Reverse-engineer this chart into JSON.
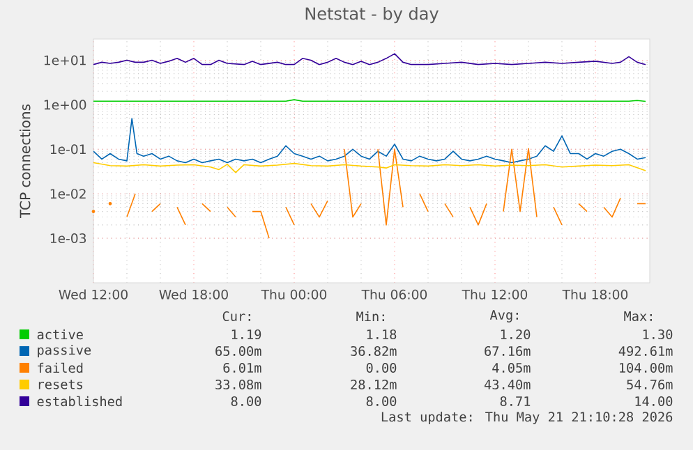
{
  "chart_data": {
    "type": "line",
    "title": "Netstat - by day",
    "ylabel": "TCP connections",
    "log": "y",
    "grid": true,
    "legend": "bottom",
    "marker": "none",
    "line_style": "solid",
    "xlim": [
      "2026-05-20T12:00",
      "2026-05-21T21:15"
    ],
    "ylim": [
      0.0001,
      30
    ],
    "xticks": [
      {
        "value": "2026-05-20T12:00",
        "label": "Wed 12:00"
      },
      {
        "value": "2026-05-20T18:00",
        "label": "Wed 18:00"
      },
      {
        "value": "2026-05-21T00:00",
        "label": "Thu 00:00"
      },
      {
        "value": "2026-05-21T06:00",
        "label": "Thu 06:00"
      },
      {
        "value": "2026-05-21T12:00",
        "label": "Thu 12:00"
      },
      {
        "value": "2026-05-21T18:00",
        "label": "Thu 18:00"
      }
    ],
    "yticks": [
      {
        "value": 0.001,
        "label": "1e-03"
      },
      {
        "value": 0.01,
        "label": "1e-02"
      },
      {
        "value": 0.1,
        "label": "1e-01"
      },
      {
        "value": 1,
        "label": "1e+00"
      },
      {
        "value": 10,
        "label": "1e+01"
      }
    ],
    "series": [
      {
        "name": "active",
        "color": "#00cc00",
        "x": [
          "2026-05-20T12:00",
          "2026-05-20T14:00",
          "2026-05-20T16:00",
          "2026-05-20T18:00",
          "2026-05-20T20:00",
          "2026-05-20T22:00",
          "2026-05-20T23:30",
          "2026-05-21T00:00",
          "2026-05-21T00:30",
          "2026-05-21T02:00",
          "2026-05-21T04:00",
          "2026-05-21T06:00",
          "2026-05-21T08:00",
          "2026-05-21T10:00",
          "2026-05-21T12:00",
          "2026-05-21T14:00",
          "2026-05-21T16:00",
          "2026-05-21T18:00",
          "2026-05-21T20:00",
          "2026-05-21T20:30",
          "2026-05-21T21:00"
        ],
        "values": [
          1.2,
          1.2,
          1.2,
          1.2,
          1.2,
          1.2,
          1.2,
          1.3,
          1.2,
          1.2,
          1.2,
          1.2,
          1.2,
          1.2,
          1.2,
          1.2,
          1.2,
          1.2,
          1.2,
          1.25,
          1.19
        ]
      },
      {
        "name": "passive",
        "color": "#0066b3",
        "x": [
          "2026-05-20T12:00",
          "2026-05-20T12:30",
          "2026-05-20T13:00",
          "2026-05-20T13:30",
          "2026-05-20T14:00",
          "2026-05-20T14:18",
          "2026-05-20T14:36",
          "2026-05-20T15:00",
          "2026-05-20T15:30",
          "2026-05-20T16:00",
          "2026-05-20T16:30",
          "2026-05-20T17:00",
          "2026-05-20T17:30",
          "2026-05-20T18:00",
          "2026-05-20T18:30",
          "2026-05-20T19:00",
          "2026-05-20T19:30",
          "2026-05-20T20:00",
          "2026-05-20T20:30",
          "2026-05-20T21:00",
          "2026-05-20T21:30",
          "2026-05-20T22:00",
          "2026-05-20T22:30",
          "2026-05-20T23:00",
          "2026-05-20T23:30",
          "2026-05-21T00:00",
          "2026-05-21T00:30",
          "2026-05-21T01:00",
          "2026-05-21T01:30",
          "2026-05-21T02:00",
          "2026-05-21T02:30",
          "2026-05-21T03:00",
          "2026-05-21T03:30",
          "2026-05-21T04:00",
          "2026-05-21T04:30",
          "2026-05-21T05:00",
          "2026-05-21T05:30",
          "2026-05-21T06:00",
          "2026-05-21T06:30",
          "2026-05-21T07:00",
          "2026-05-21T07:30",
          "2026-05-21T08:00",
          "2026-05-21T08:30",
          "2026-05-21T09:00",
          "2026-05-21T09:30",
          "2026-05-21T10:00",
          "2026-05-21T10:30",
          "2026-05-21T11:00",
          "2026-05-21T11:30",
          "2026-05-21T12:00",
          "2026-05-21T12:30",
          "2026-05-21T13:00",
          "2026-05-21T13:30",
          "2026-05-21T14:00",
          "2026-05-21T14:30",
          "2026-05-21T15:00",
          "2026-05-21T15:30",
          "2026-05-21T16:00",
          "2026-05-21T16:30",
          "2026-05-21T17:00",
          "2026-05-21T17:30",
          "2026-05-21T18:00",
          "2026-05-21T18:30",
          "2026-05-21T19:00",
          "2026-05-21T19:30",
          "2026-05-21T20:00",
          "2026-05-21T20:30",
          "2026-05-21T21:00"
        ],
        "values": [
          0.09,
          0.06,
          0.08,
          0.06,
          0.055,
          0.49,
          0.08,
          0.07,
          0.08,
          0.06,
          0.07,
          0.055,
          0.05,
          0.06,
          0.05,
          0.055,
          0.06,
          0.05,
          0.06,
          0.055,
          0.06,
          0.05,
          0.06,
          0.07,
          0.12,
          0.08,
          0.07,
          0.06,
          0.07,
          0.055,
          0.06,
          0.07,
          0.1,
          0.07,
          0.06,
          0.09,
          0.07,
          0.13,
          0.06,
          0.055,
          0.07,
          0.06,
          0.055,
          0.06,
          0.09,
          0.06,
          0.055,
          0.06,
          0.07,
          0.06,
          0.055,
          0.05,
          0.055,
          0.06,
          0.07,
          0.12,
          0.09,
          0.2,
          0.08,
          0.08,
          0.06,
          0.08,
          0.07,
          0.09,
          0.1,
          0.08,
          0.06,
          0.065
        ]
      },
      {
        "name": "failed",
        "color": "#ff8000",
        "x": [
          "2026-05-20T12:00",
          "2026-05-20T12:30",
          "2026-05-20T13:00",
          "2026-05-20T13:30",
          "2026-05-20T14:00",
          "2026-05-20T14:30",
          "2026-05-20T15:00",
          "2026-05-20T15:30",
          "2026-05-20T16:00",
          "2026-05-20T16:30",
          "2026-05-20T17:00",
          "2026-05-20T17:30",
          "2026-05-20T18:00",
          "2026-05-20T18:30",
          "2026-05-20T19:00",
          "2026-05-20T19:30",
          "2026-05-20T20:00",
          "2026-05-20T20:30",
          "2026-05-20T21:00",
          "2026-05-20T21:30",
          "2026-05-20T22:00",
          "2026-05-20T22:30",
          "2026-05-20T23:00",
          "2026-05-20T23:30",
          "2026-05-21T00:00",
          "2026-05-21T00:30",
          "2026-05-21T01:00",
          "2026-05-21T01:30",
          "2026-05-21T02:00",
          "2026-05-21T02:30",
          "2026-05-21T03:00",
          "2026-05-21T03:30",
          "2026-05-21T04:00",
          "2026-05-21T04:30",
          "2026-05-21T05:00",
          "2026-05-21T05:30",
          "2026-05-21T06:00",
          "2026-05-21T06:30",
          "2026-05-21T07:00",
          "2026-05-21T07:30",
          "2026-05-21T08:00",
          "2026-05-21T08:30",
          "2026-05-21T09:00",
          "2026-05-21T09:30",
          "2026-05-21T10:00",
          "2026-05-21T10:30",
          "2026-05-21T11:00",
          "2026-05-21T11:30",
          "2026-05-21T12:00",
          "2026-05-21T12:30",
          "2026-05-21T13:00",
          "2026-05-21T13:30",
          "2026-05-21T14:00",
          "2026-05-21T14:30",
          "2026-05-21T15:00",
          "2026-05-21T15:30",
          "2026-05-21T16:00",
          "2026-05-21T16:30",
          "2026-05-21T17:00",
          "2026-05-21T17:30",
          "2026-05-21T18:00",
          "2026-05-21T18:30",
          "2026-05-21T19:00",
          "2026-05-21T19:30",
          "2026-05-21T20:00",
          "2026-05-21T20:30",
          "2026-05-21T21:00"
        ],
        "values": [
          0.004,
          null,
          0.006,
          null,
          0.003,
          0.01,
          null,
          0.004,
          0.006,
          null,
          0.005,
          0.002,
          null,
          0.006,
          0.004,
          null,
          0.005,
          0.003,
          null,
          0.004,
          0.004,
          0.001,
          null,
          0.005,
          0.002,
          null,
          0.006,
          0.003,
          0.007,
          null,
          0.1,
          0.003,
          0.006,
          null,
          0.1,
          0.002,
          0.1,
          0.005,
          null,
          0.01,
          0.004,
          null,
          0.006,
          0.003,
          null,
          0.005,
          0.002,
          0.006,
          null,
          0.004,
          0.1,
          0.004,
          0.104,
          0.003,
          null,
          0.005,
          0.002,
          null,
          0.006,
          0.004,
          null,
          0.005,
          0.003,
          0.008,
          null,
          0.006,
          0.006
        ]
      },
      {
        "name": "resets",
        "color": "#ffcc00",
        "x": [
          "2026-05-20T12:00",
          "2026-05-20T13:00",
          "2026-05-20T14:00",
          "2026-05-20T15:00",
          "2026-05-20T16:00",
          "2026-05-20T17:00",
          "2026-05-20T18:00",
          "2026-05-20T19:00",
          "2026-05-20T19:30",
          "2026-05-20T20:00",
          "2026-05-20T20:30",
          "2026-05-20T21:00",
          "2026-05-20T22:00",
          "2026-05-20T23:00",
          "2026-05-21T00:00",
          "2026-05-21T01:00",
          "2026-05-21T02:00",
          "2026-05-21T03:00",
          "2026-05-21T04:00",
          "2026-05-21T05:00",
          "2026-05-21T05:30",
          "2026-05-21T06:00",
          "2026-05-21T07:00",
          "2026-05-21T08:00",
          "2026-05-21T09:00",
          "2026-05-21T10:00",
          "2026-05-21T11:00",
          "2026-05-21T12:00",
          "2026-05-21T13:00",
          "2026-05-21T14:00",
          "2026-05-21T15:00",
          "2026-05-21T16:00",
          "2026-05-21T17:00",
          "2026-05-21T18:00",
          "2026-05-21T19:00",
          "2026-05-21T20:00",
          "2026-05-21T21:00"
        ],
        "values": [
          0.05,
          0.043,
          0.042,
          0.045,
          0.042,
          0.044,
          0.045,
          0.04,
          0.035,
          0.046,
          0.03,
          0.045,
          0.042,
          0.044,
          0.048,
          0.043,
          0.042,
          0.045,
          0.042,
          0.04,
          0.038,
          0.045,
          0.043,
          0.042,
          0.045,
          0.043,
          0.045,
          0.042,
          0.044,
          0.043,
          0.045,
          0.04,
          0.042,
          0.044,
          0.043,
          0.045,
          0.033
        ]
      },
      {
        "name": "established",
        "color": "#330099",
        "x": [
          "2026-05-20T12:00",
          "2026-05-20T12:30",
          "2026-05-20T13:00",
          "2026-05-20T13:30",
          "2026-05-20T14:00",
          "2026-05-20T14:30",
          "2026-05-20T15:00",
          "2026-05-20T15:30",
          "2026-05-20T16:00",
          "2026-05-20T16:30",
          "2026-05-20T17:00",
          "2026-05-20T17:30",
          "2026-05-20T18:00",
          "2026-05-20T18:30",
          "2026-05-20T19:00",
          "2026-05-20T19:30",
          "2026-05-20T20:00",
          "2026-05-20T21:00",
          "2026-05-20T21:30",
          "2026-05-20T22:00",
          "2026-05-20T23:00",
          "2026-05-20T23:30",
          "2026-05-21T00:00",
          "2026-05-21T00:30",
          "2026-05-21T01:00",
          "2026-05-21T01:30",
          "2026-05-21T02:00",
          "2026-05-21T02:30",
          "2026-05-21T03:00",
          "2026-05-21T03:30",
          "2026-05-21T04:00",
          "2026-05-21T04:30",
          "2026-05-21T05:00",
          "2026-05-21T05:30",
          "2026-05-21T06:00",
          "2026-05-21T06:30",
          "2026-05-21T07:00",
          "2026-05-21T08:00",
          "2026-05-21T09:00",
          "2026-05-21T10:00",
          "2026-05-21T11:00",
          "2026-05-21T12:00",
          "2026-05-21T13:00",
          "2026-05-21T14:00",
          "2026-05-21T15:00",
          "2026-05-21T16:00",
          "2026-05-21T17:00",
          "2026-05-21T18:00",
          "2026-05-21T19:00",
          "2026-05-21T19:30",
          "2026-05-21T20:00",
          "2026-05-21T20:30",
          "2026-05-21T21:00"
        ],
        "values": [
          8,
          9,
          8.5,
          9,
          10,
          9,
          9,
          10,
          8.5,
          9.5,
          11,
          9,
          11,
          8,
          8,
          10,
          8.5,
          8,
          9.5,
          8,
          9,
          8,
          8,
          11,
          10,
          8,
          9,
          11,
          9,
          8,
          9.5,
          8,
          9,
          11,
          14,
          9,
          8,
          8,
          8.5,
          9,
          8,
          8.5,
          8,
          8.5,
          9,
          8.5,
          9,
          9.5,
          8.5,
          9,
          12,
          9,
          8
        ]
      }
    ],
    "annotations": [
      "Cur:",
      "Min:",
      "Avg:",
      "Max:",
      "1.19",
      "1.18",
      "1.20",
      "1.30",
      "65.00m",
      "36.82m",
      "67.16m",
      "492.61m",
      "6.01m",
      "0.00",
      "4.05m",
      "104.00m",
      "33.08m",
      "28.12m",
      "43.40m",
      "54.76m",
      "8.00",
      "8.00",
      "8.71",
      "14.00",
      "Last update: Thu May 21 21:10:28 2026"
    ]
  }
}
